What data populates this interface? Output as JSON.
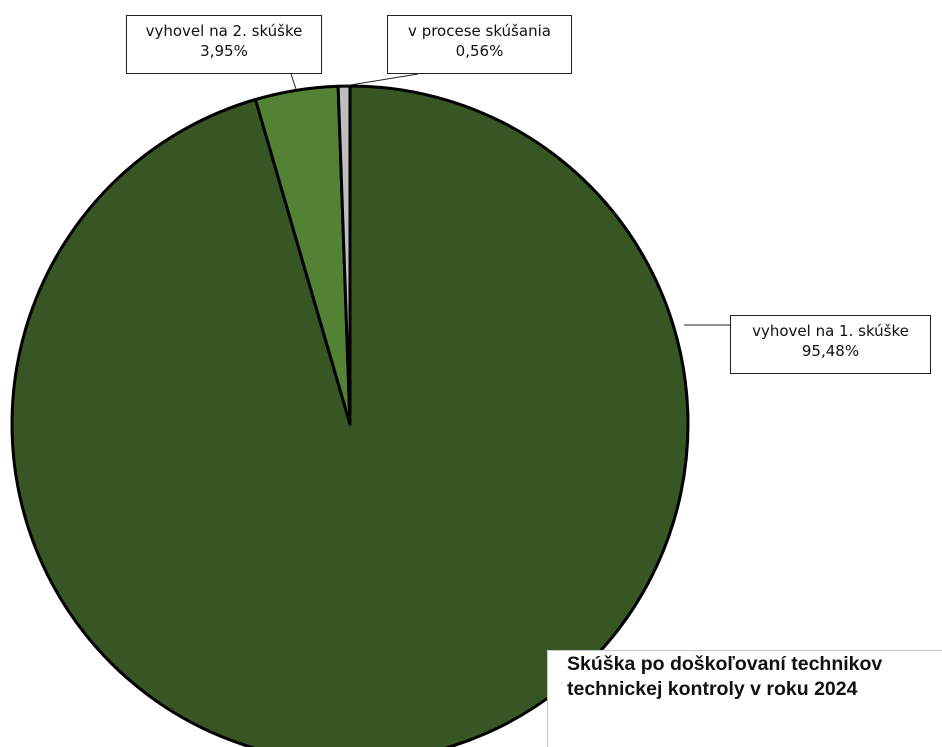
{
  "chart_data": {
    "type": "pie",
    "title": "Skúška po doškoľovaní technikov technickej kontroly v roku 2024",
    "slices": [
      {
        "label": "vyhovel na 1. skúške",
        "value": 95.48,
        "display": "95,48%",
        "color": "#375623"
      },
      {
        "label": "vyhovel na 2. skúške",
        "value": 3.95,
        "display": "3,95%",
        "color": "#548235"
      },
      {
        "label": "v procese skúšania",
        "value": 0.56,
        "display": "0,56%",
        "color": "#bfbfbf"
      }
    ],
    "legend": "none"
  }
}
